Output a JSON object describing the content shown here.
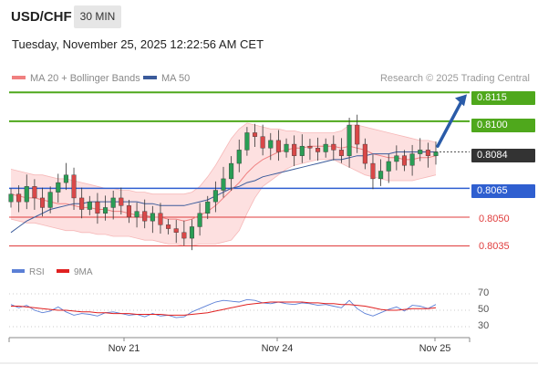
{
  "header": {
    "symbol": "USD/CHF",
    "timeframe": "30 MIN",
    "datetime": "Tuesday, November 25, 2025 12:22:56 AM CET"
  },
  "legend": {
    "ma20": "MA 20 + Bollinger Bands",
    "ma50": "MA 50",
    "ma20_color": "#f08080",
    "ma50_color": "#3b5b9b"
  },
  "research": "Research © 2025 Trading Central",
  "rsi_legend": {
    "rsi": "RSI",
    "ma9": "9MA",
    "rsi_color": "#5b7fd6",
    "ma9_color": "#e02020"
  },
  "levels": {
    "resistance2": "0.8115",
    "resistance1": "0.8100",
    "current": "0.8084",
    "pivot": "0.8065",
    "support1": "0.8050",
    "support2": "0.8035"
  },
  "colors": {
    "green": "#4fa81c",
    "blue": "#2f5fd0",
    "red": "#e03c3c",
    "bull": "#2a9d55",
    "bear": "#d94848",
    "arrow": "#2a5ba8"
  },
  "x_axis": [
    "Nov 21",
    "Nov 24",
    "Nov 25"
  ],
  "rsi_levels": [
    "70",
    "50",
    "30"
  ],
  "chart_data": [
    {
      "type": "candlestick",
      "title": "USD/CHF 30 MIN",
      "ylim": [
        0.803,
        0.8118
      ],
      "horizontal_lines": [
        0.8115,
        0.81,
        0.8065,
        0.805,
        0.8035
      ],
      "close_series": [
        0.8062,
        0.8058,
        0.8066,
        0.806,
        0.8055,
        0.8063,
        0.8068,
        0.8072,
        0.806,
        0.8054,
        0.8058,
        0.8052,
        0.8055,
        0.806,
        0.8056,
        0.805,
        0.8053,
        0.8048,
        0.8052,
        0.8046,
        0.8044,
        0.8042,
        0.8039,
        0.8045,
        0.8052,
        0.8058,
        0.8064,
        0.807,
        0.8078,
        0.8085,
        0.8094,
        0.8092,
        0.8086,
        0.809,
        0.8084,
        0.8088,
        0.8082,
        0.8087,
        0.8086,
        0.8084,
        0.8088,
        0.8085,
        0.8082,
        0.8098,
        0.8088,
        0.8078,
        0.807,
        0.8074,
        0.8079,
        0.8082,
        0.8077,
        0.8083,
        0.8085,
        0.8082,
        0.8084
      ],
      "ma20": [
        0.8062,
        0.8061,
        0.806,
        0.806,
        0.8059,
        0.8058,
        0.8057,
        0.8057,
        0.8056,
        0.8055,
        0.8055,
        0.8054,
        0.8054,
        0.8053,
        0.8053,
        0.8052,
        0.8051,
        0.8051,
        0.805,
        0.805,
        0.8049,
        0.8049,
        0.8048,
        0.8049,
        0.8051,
        0.8053,
        0.8056,
        0.806,
        0.8064,
        0.8068,
        0.8073,
        0.8077,
        0.808,
        0.8082,
        0.8084,
        0.8085,
        0.8086,
        0.8086,
        0.8087,
        0.8087,
        0.8087,
        0.8087,
        0.8086,
        0.8087,
        0.8086,
        0.8085,
        0.8083,
        0.8082,
        0.8081,
        0.8081,
        0.808,
        0.808,
        0.8081,
        0.8081,
        0.8082
      ],
      "ma50": [
        0.8042,
        0.8045,
        0.8048,
        0.805,
        0.8052,
        0.8054,
        0.8055,
        0.8056,
        0.8057,
        0.8057,
        0.8058,
        0.8058,
        0.8058,
        0.8058,
        0.8058,
        0.8058,
        0.8058,
        0.8057,
        0.8057,
        0.8056,
        0.8056,
        0.8056,
        0.8056,
        0.8057,
        0.8058,
        0.8059,
        0.8061,
        0.8063,
        0.8065,
        0.8066,
        0.8068,
        0.8069,
        0.8071,
        0.8072,
        0.8073,
        0.8074,
        0.8075,
        0.8076,
        0.8077,
        0.8078,
        0.8079,
        0.808,
        0.808,
        0.8081,
        0.8082,
        0.8082,
        0.8083,
        0.8083,
        0.8083,
        0.8084,
        0.8084,
        0.8084,
        0.8084,
        0.8084,
        0.8084
      ],
      "bb_upper": [
        0.8075,
        0.8074,
        0.8073,
        0.8072,
        0.8072,
        0.8071,
        0.807,
        0.807,
        0.8069,
        0.8068,
        0.8067,
        0.8066,
        0.8065,
        0.8065,
        0.8064,
        0.8064,
        0.8063,
        0.8063,
        0.8062,
        0.8062,
        0.8062,
        0.8062,
        0.8062,
        0.8063,
        0.8066,
        0.8071,
        0.8077,
        0.8084,
        0.8091,
        0.8096,
        0.8099,
        0.8098,
        0.8097,
        0.8096,
        0.8096,
        0.8095,
        0.8095,
        0.8094,
        0.8094,
        0.8094,
        0.8094,
        0.8094,
        0.8095,
        0.8098,
        0.8098,
        0.8097,
        0.8096,
        0.8095,
        0.8094,
        0.8093,
        0.8092,
        0.8091,
        0.809,
        0.809,
        0.8089
      ],
      "bb_lower": [
        0.8049,
        0.8048,
        0.8047,
        0.8047,
        0.8046,
        0.8045,
        0.8044,
        0.8043,
        0.8043,
        0.8042,
        0.8042,
        0.8041,
        0.8041,
        0.804,
        0.804,
        0.804,
        0.8039,
        0.8038,
        0.8038,
        0.8037,
        0.8036,
        0.8036,
        0.8035,
        0.8035,
        0.8036,
        0.8036,
        0.8036,
        0.8037,
        0.8038,
        0.8043,
        0.8052,
        0.806,
        0.8066,
        0.8069,
        0.8072,
        0.8075,
        0.8077,
        0.8078,
        0.8079,
        0.808,
        0.808,
        0.808,
        0.8078,
        0.8076,
        0.8074,
        0.8072,
        0.8071,
        0.807,
        0.8069,
        0.8069,
        0.8069,
        0.8069,
        0.807,
        0.8071,
        0.8072
      ]
    },
    {
      "type": "line",
      "title": "RSI",
      "ylim": [
        30,
        70
      ],
      "series": [
        {
          "name": "RSI",
          "values": [
            57,
            53,
            56,
            50,
            47,
            49,
            54,
            48,
            44,
            46,
            45,
            43,
            47,
            48,
            46,
            44,
            45,
            42,
            46,
            43,
            44,
            41,
            42,
            48,
            52,
            56,
            60,
            62,
            61,
            60,
            63,
            62,
            59,
            58,
            60,
            58,
            57,
            59,
            58,
            56,
            57,
            55,
            53,
            62,
            52,
            46,
            43,
            47,
            51,
            54,
            49,
            56,
            55,
            52,
            57
          ]
        },
        {
          "name": "9MA",
          "values": [
            55,
            55,
            54,
            53,
            52,
            51,
            50,
            50,
            49,
            48,
            48,
            47,
            47,
            46,
            46,
            46,
            45,
            45,
            45,
            45,
            44,
            44,
            44,
            45,
            46,
            47,
            49,
            51,
            53,
            55,
            57,
            58,
            59,
            60,
            60,
            60,
            60,
            60,
            59,
            59,
            58,
            58,
            57,
            57,
            56,
            55,
            53,
            51,
            50,
            50,
            51,
            52,
            52,
            52,
            53
          ]
        }
      ]
    }
  ]
}
